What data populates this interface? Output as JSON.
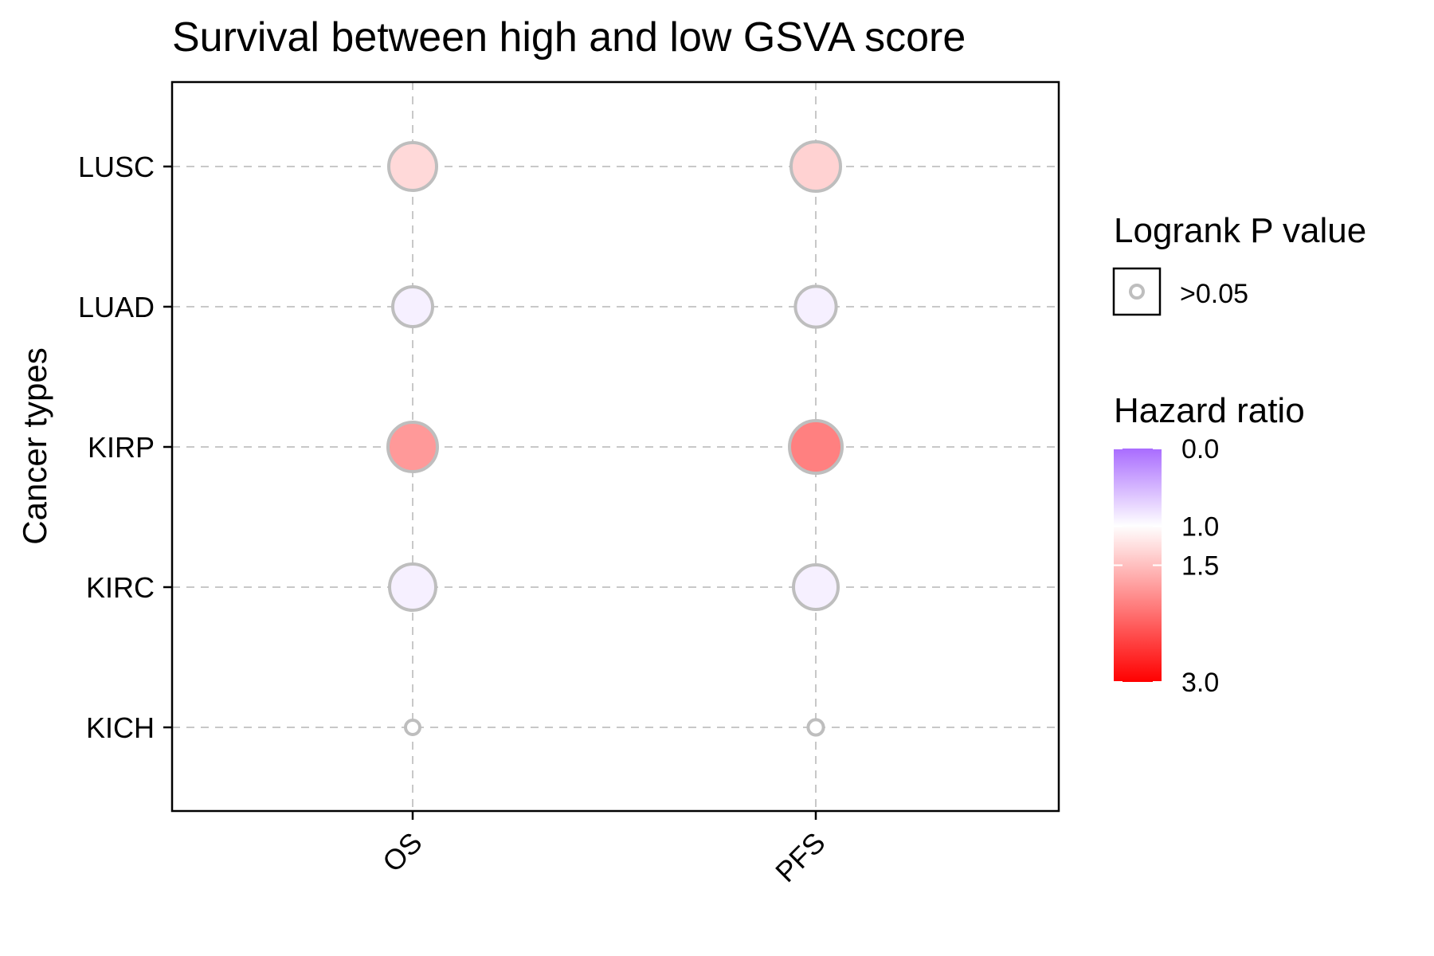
{
  "chart_data": {
    "type": "scatter",
    "title": "Survival between high and low GSVA score",
    "xlabel": "",
    "ylabel": "Cancer types",
    "x_categories": [
      "OS",
      "PFS"
    ],
    "y_categories": [
      "KICH",
      "KIRC",
      "KIRP",
      "LUAD",
      "LUSC"
    ],
    "points": [
      {
        "x": "OS",
        "y": "LUSC",
        "hazard_ratio": 1.3,
        "neg_log10_p": 1.1,
        "p_group": ">0.05"
      },
      {
        "x": "PFS",
        "y": "LUSC",
        "hazard_ratio": 1.35,
        "neg_log10_p": 1.15,
        "p_group": ">0.05"
      },
      {
        "x": "OS",
        "y": "LUAD",
        "hazard_ratio": 0.9,
        "neg_log10_p": 0.85,
        "p_group": ">0.05"
      },
      {
        "x": "PFS",
        "y": "LUAD",
        "hazard_ratio": 0.9,
        "neg_log10_p": 0.88,
        "p_group": ">0.05"
      },
      {
        "x": "OS",
        "y": "KIRP",
        "hazard_ratio": 1.8,
        "neg_log10_p": 1.15,
        "p_group": ">0.05"
      },
      {
        "x": "PFS",
        "y": "KIRP",
        "hazard_ratio": 2.0,
        "neg_log10_p": 1.25,
        "p_group": ">0.05"
      },
      {
        "x": "OS",
        "y": "KIRC",
        "hazard_ratio": 0.9,
        "neg_log10_p": 1.05,
        "p_group": ">0.05"
      },
      {
        "x": "PFS",
        "y": "KIRC",
        "hazard_ratio": 0.9,
        "neg_log10_p": 1.0,
        "p_group": ">0.05"
      },
      {
        "x": "OS",
        "y": "KICH",
        "hazard_ratio": 1.0,
        "neg_log10_p": 0.05,
        "p_group": ">0.05"
      },
      {
        "x": "PFS",
        "y": "KICH",
        "hazard_ratio": 1.0,
        "neg_log10_p": 0.08,
        "p_group": ">0.05"
      }
    ],
    "grid": true,
    "legend_position": "right",
    "legend": {
      "p_value": {
        "title": "Logrank P value",
        "entries": [
          ">0.05"
        ],
        "outline_color": "#bebebe"
      },
      "hazard_ratio": {
        "title": "Hazard ratio",
        "range": [
          0.0,
          3.0
        ],
        "ticks": [
          {
            "value": 0.0,
            "label": "0.0"
          },
          {
            "value": 1.0,
            "label": "1.0"
          },
          {
            "value": 1.5,
            "label": "1.5"
          },
          {
            "value": 3.0,
            "label": "3.0"
          }
        ],
        "low_color": "#a96cff",
        "mid_color": "#ffffff",
        "high_color": "#ff0000"
      }
    }
  }
}
